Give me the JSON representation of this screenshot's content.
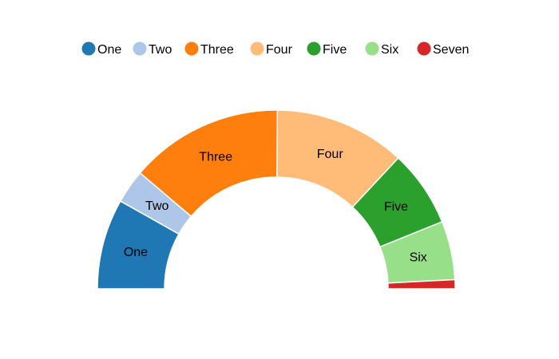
{
  "chart_data": {
    "type": "pie",
    "variant": "half-donut",
    "legend_position": "top",
    "categories": [
      "One",
      "Two",
      "Three",
      "Four",
      "Five",
      "Six",
      "Seven"
    ],
    "values": [
      20,
      7.5,
      34,
      29,
      17,
      13,
      2
    ],
    "colors": [
      "#1f77b4",
      "#aec7e8",
      "#ff7f0e",
      "#ffbb78",
      "#2ca02c",
      "#98df8a",
      "#d62728"
    ],
    "slice_labels": [
      "One",
      "Two",
      "Three",
      "Four",
      "Five",
      "Six",
      ""
    ]
  }
}
